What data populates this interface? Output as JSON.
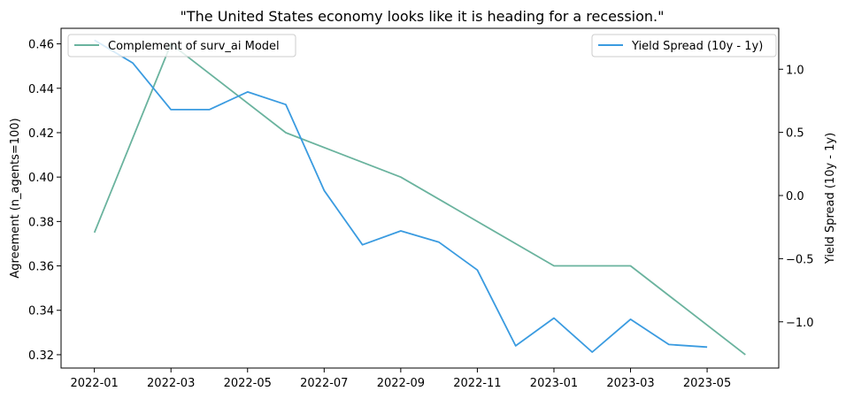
{
  "chart_data": {
    "type": "line",
    "title": "\"The United States economy looks like it is heading for a recession.\"",
    "ylabel": "Agreement (n_agents=100)",
    "y2label": "Yield Spread (10y - 1y)",
    "ylim": [
      0.314,
      0.467
    ],
    "y2lim": [
      -1.366,
      1.324
    ],
    "x_ticks": [
      "2022-01",
      "2022-03",
      "2022-05",
      "2022-07",
      "2022-09",
      "2022-11",
      "2023-01",
      "2023-03",
      "2023-05"
    ],
    "y_ticks": [
      "0.32",
      "0.34",
      "0.36",
      "0.38",
      "0.40",
      "0.42",
      "0.44",
      "0.46"
    ],
    "y2_ticks": [
      "−1.0",
      "−0.5",
      "0.0",
      "0.5",
      "1.0"
    ],
    "legend_left_placement": "upper-left",
    "legend_right_placement": "upper-right",
    "grid": false,
    "series": [
      {
        "name": "Complement of surv_ai Model",
        "axis": "left",
        "color": "#6ab39e",
        "x": [
          "2022-01",
          "2022-03",
          "2022-06",
          "2022-09",
          "2023-01",
          "2023-03",
          "2023-06"
        ],
        "values": [
          0.375,
          0.46,
          0.42,
          0.4,
          0.36,
          0.36,
          0.32
        ]
      },
      {
        "name": "Yield Spread (10y - 1y)",
        "axis": "right",
        "color": "#3a9be0",
        "x": [
          "2022-01",
          "2022-02",
          "2022-03",
          "2022-04",
          "2022-05",
          "2022-06",
          "2022-07",
          "2022-08",
          "2022-09",
          "2022-10",
          "2022-11",
          "2022-12",
          "2023-01",
          "2023-02",
          "2023-03",
          "2023-04",
          "2023-05"
        ],
        "values": [
          1.23,
          1.05,
          0.68,
          0.68,
          0.82,
          0.72,
          0.04,
          -0.39,
          -0.28,
          -0.37,
          -0.59,
          -1.19,
          -0.97,
          -1.24,
          -0.98,
          -1.18,
          -1.2
        ]
      }
    ]
  }
}
